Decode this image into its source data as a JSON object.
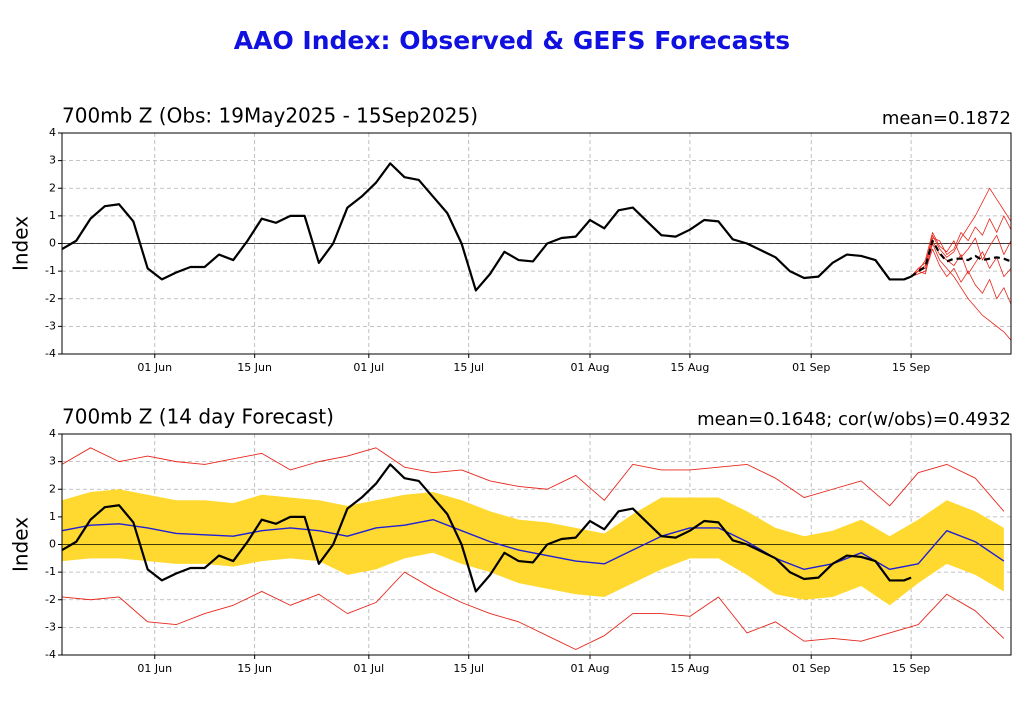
{
  "title": "AAO Index: Observed & GEFS Forecasts",
  "chart_data": [
    {
      "type": "line",
      "title": "700mb Z (Obs: 19May2025 - 15Sep2025)",
      "title_right": "mean=0.1872",
      "ylabel": "Index",
      "xlim": [
        0,
        133
      ],
      "ylim": [
        -4,
        4
      ],
      "yticks": [
        -4,
        -3,
        -2,
        -1,
        0,
        1,
        2,
        3,
        4
      ],
      "xticks": [
        {
          "value": 13,
          "label": "01 Jun"
        },
        {
          "value": 27,
          "label": "15 Jun"
        },
        {
          "value": 43,
          "label": "01 Jul"
        },
        {
          "value": 57,
          "label": "15 Jul"
        },
        {
          "value": 74,
          "label": "01 Aug"
        },
        {
          "value": 88,
          "label": "15 Aug"
        },
        {
          "value": 105,
          "label": "01 Sep"
        },
        {
          "value": 119,
          "label": "15 Sep"
        }
      ],
      "grid": true,
      "hline": 0,
      "bands": [],
      "series": [
        {
          "color": "#e8261c",
          "width": 0.8,
          "x": [
            119,
            120,
            121,
            122,
            123,
            124,
            125,
            126,
            127,
            128,
            129,
            130,
            131,
            132,
            133
          ],
          "values": [
            -1.2,
            -1.0,
            -0.8,
            0.3,
            -0.2,
            -0.5,
            -0.3,
            0.2,
            0.6,
            1.0,
            1.5,
            2.0,
            1.6,
            1.2,
            0.8
          ]
        },
        {
          "color": "#e8261c",
          "width": 0.8,
          "x": [
            119,
            120,
            121,
            122,
            123,
            124,
            125,
            126,
            127,
            128,
            129,
            130,
            131,
            132,
            133
          ],
          "values": [
            -1.2,
            -1.0,
            -1.1,
            0.0,
            -0.6,
            -0.9,
            -1.2,
            -1.6,
            -2.0,
            -2.3,
            -2.6,
            -2.8,
            -3.0,
            -3.2,
            -3.5
          ]
        },
        {
          "color": "#e8261c",
          "width": 0.8,
          "x": [
            119,
            120,
            121,
            122,
            123,
            124,
            125,
            126,
            127,
            128,
            129,
            130,
            131,
            132,
            133
          ],
          "values": [
            -1.2,
            -0.9,
            -0.7,
            0.2,
            0.1,
            -0.4,
            -0.2,
            0.4,
            0.1,
            0.6,
            0.3,
            0.9,
            0.4,
            1.0,
            0.5
          ]
        },
        {
          "color": "#e8261c",
          "width": 0.8,
          "x": [
            119,
            120,
            121,
            122,
            123,
            124,
            125,
            126,
            127,
            128,
            129,
            130,
            131,
            132,
            133
          ],
          "values": [
            -1.2,
            -1.1,
            -1.0,
            -0.2,
            -0.8,
            -1.2,
            -0.9,
            -1.4,
            -1.0,
            -1.5,
            -1.8,
            -1.3,
            -2.0,
            -1.6,
            -2.2
          ]
        },
        {
          "color": "#e8261c",
          "width": 0.8,
          "x": [
            119,
            120,
            121,
            122,
            123,
            124,
            125,
            126,
            127,
            128,
            129,
            130,
            131,
            132,
            133
          ],
          "values": [
            -1.2,
            -0.9,
            -0.9,
            0.1,
            -0.4,
            -0.6,
            -0.8,
            -0.4,
            -1.1,
            -0.7,
            -0.3,
            -0.9,
            -0.5,
            -1.2,
            -0.9
          ]
        },
        {
          "color": "#e8261c",
          "width": 0.8,
          "x": [
            119,
            120,
            121,
            122,
            123,
            124,
            125,
            126,
            127,
            128,
            129,
            130,
            131,
            132,
            133
          ],
          "values": [
            -1.2,
            -1.0,
            -0.6,
            0.4,
            -0.1,
            -0.3,
            0.1,
            -0.5,
            -0.2,
            0.2,
            -0.6,
            -0.1,
            0.3,
            -0.4,
            0.1
          ]
        },
        {
          "color": "#000000",
          "width": 2.2,
          "dash": true,
          "x": [
            119,
            120,
            121,
            122,
            123,
            124,
            125,
            126,
            127,
            128,
            129,
            130,
            131,
            132,
            133
          ],
          "values": [
            -1.2,
            -1.0,
            -0.85,
            0.1,
            -0.35,
            -0.65,
            -0.55,
            -0.55,
            -0.6,
            -0.45,
            -0.6,
            -0.55,
            -0.5,
            -0.55,
            -0.65
          ]
        },
        {
          "color": "#000000",
          "width": 2.2,
          "x": [
            0,
            2,
            4,
            6,
            8,
            10,
            12,
            14,
            16,
            18,
            20,
            22,
            24,
            26,
            28,
            30,
            32,
            34,
            36,
            38,
            40,
            42,
            44,
            46,
            48,
            50,
            52,
            54,
            56,
            58,
            60,
            62,
            64,
            66,
            68,
            70,
            72,
            74,
            76,
            78,
            80,
            82,
            84,
            86,
            88,
            90,
            92,
            94,
            96,
            98,
            100,
            102,
            104,
            106,
            108,
            110,
            112,
            114,
            116,
            118,
            119
          ],
          "values": [
            -0.2,
            0.1,
            0.9,
            1.35,
            1.42,
            0.8,
            -0.9,
            -1.3,
            -1.05,
            -0.85,
            -0.85,
            -0.4,
            -0.6,
            0.1,
            0.9,
            0.75,
            1.0,
            1.0,
            -0.7,
            0.0,
            1.3,
            1.7,
            2.2,
            2.9,
            2.4,
            2.3,
            1.7,
            1.1,
            0.0,
            -1.7,
            -1.1,
            -0.3,
            -0.6,
            -0.65,
            0.0,
            0.2,
            0.25,
            0.85,
            0.55,
            1.2,
            1.3,
            0.8,
            0.3,
            0.25,
            0.5,
            0.85,
            0.8,
            0.15,
            0.0,
            -0.25,
            -0.5,
            -1.0,
            -1.25,
            -1.2,
            -0.7,
            -0.4,
            -0.45,
            -0.6,
            -1.3,
            -1.3,
            -1.2
          ]
        }
      ]
    },
    {
      "type": "line",
      "title": "700mb Z (14 day Forecast)",
      "title_right": "mean=0.1648; cor(w/obs)=0.4932",
      "ylabel": "Index",
      "xlim": [
        0,
        133
      ],
      "ylim": [
        -4,
        4
      ],
      "yticks": [
        -4,
        -3,
        -2,
        -1,
        0,
        1,
        2,
        3,
        4
      ],
      "xticks": [
        {
          "value": 13,
          "label": "01 Jun"
        },
        {
          "value": 27,
          "label": "15 Jun"
        },
        {
          "value": 43,
          "label": "01 Jul"
        },
        {
          "value": 57,
          "label": "15 Jul"
        },
        {
          "value": 74,
          "label": "01 Aug"
        },
        {
          "value": 88,
          "label": "15 Aug"
        },
        {
          "value": 105,
          "label": "01 Sep"
        },
        {
          "value": 119,
          "label": "15 Sep"
        }
      ],
      "grid": true,
      "hline": 0,
      "bands": [
        {
          "color": "#ffd92f",
          "x": [
            0,
            4,
            8,
            12,
            16,
            20,
            24,
            28,
            32,
            36,
            40,
            44,
            48,
            52,
            56,
            60,
            64,
            68,
            72,
            76,
            80,
            84,
            88,
            92,
            96,
            100,
            104,
            108,
            112,
            116,
            120,
            124,
            128,
            132
          ],
          "high": [
            1.6,
            1.9,
            2.0,
            1.8,
            1.6,
            1.6,
            1.5,
            1.8,
            1.7,
            1.6,
            1.4,
            1.6,
            1.8,
            1.9,
            1.6,
            1.2,
            0.9,
            0.8,
            0.6,
            0.4,
            1.1,
            1.7,
            1.7,
            1.7,
            1.2,
            0.6,
            0.3,
            0.5,
            0.9,
            0.3,
            0.9,
            1.6,
            1.2,
            0.6
          ],
          "low": [
            -0.6,
            -0.5,
            -0.5,
            -0.6,
            -0.7,
            -0.7,
            -0.8,
            -0.6,
            -0.5,
            -0.6,
            -1.1,
            -0.9,
            -0.5,
            -0.3,
            -0.7,
            -1.0,
            -1.4,
            -1.6,
            -1.8,
            -1.9,
            -1.4,
            -0.9,
            -0.5,
            -0.5,
            -1.1,
            -1.8,
            -2.0,
            -1.9,
            -1.5,
            -2.2,
            -1.4,
            -0.7,
            -1.1,
            -1.7
          ]
        }
      ],
      "series": [
        {
          "color": "#e8261c",
          "width": 0.9,
          "x": [
            0,
            4,
            8,
            12,
            16,
            20,
            24,
            28,
            32,
            36,
            40,
            44,
            48,
            52,
            56,
            60,
            64,
            68,
            72,
            76,
            80,
            84,
            88,
            92,
            96,
            100,
            104,
            108,
            112,
            116,
            120,
            124,
            128,
            132
          ],
          "values": [
            2.9,
            3.5,
            3.0,
            3.2,
            3.0,
            2.9,
            3.1,
            3.3,
            2.7,
            3.0,
            3.2,
            3.5,
            2.8,
            2.6,
            2.7,
            2.3,
            2.1,
            2.0,
            2.5,
            1.6,
            2.9,
            2.7,
            2.7,
            2.8,
            2.9,
            2.4,
            1.7,
            2.0,
            2.3,
            1.4,
            2.6,
            2.9,
            2.4,
            1.2
          ]
        },
        {
          "color": "#e8261c",
          "width": 0.9,
          "x": [
            0,
            4,
            8,
            12,
            16,
            20,
            24,
            28,
            32,
            36,
            40,
            44,
            48,
            52,
            56,
            60,
            64,
            68,
            72,
            76,
            80,
            84,
            88,
            92,
            96,
            100,
            104,
            108,
            112,
            116,
            120,
            124,
            128,
            132
          ],
          "values": [
            -1.9,
            -2.0,
            -1.9,
            -2.8,
            -2.9,
            -2.5,
            -2.2,
            -1.7,
            -2.2,
            -1.8,
            -2.5,
            -2.1,
            -1.0,
            -1.6,
            -2.1,
            -2.5,
            -2.8,
            -3.3,
            -3.8,
            -3.3,
            -2.5,
            -2.5,
            -2.6,
            -1.9,
            -3.2,
            -2.8,
            -3.5,
            -3.4,
            -3.5,
            -3.2,
            -2.9,
            -1.8,
            -2.4,
            -3.4
          ]
        },
        {
          "color": "#1f1fd6",
          "width": 1.4,
          "x": [
            0,
            4,
            8,
            12,
            16,
            20,
            24,
            28,
            32,
            36,
            40,
            44,
            48,
            52,
            56,
            60,
            64,
            68,
            72,
            76,
            80,
            84,
            88,
            92,
            96,
            100,
            104,
            108,
            112,
            116,
            120,
            124,
            128,
            132
          ],
          "values": [
            0.5,
            0.7,
            0.75,
            0.6,
            0.4,
            0.35,
            0.3,
            0.5,
            0.6,
            0.5,
            0.3,
            0.6,
            0.7,
            0.9,
            0.5,
            0.1,
            -0.2,
            -0.4,
            -0.6,
            -0.7,
            -0.2,
            0.3,
            0.6,
            0.6,
            0.1,
            -0.5,
            -0.9,
            -0.7,
            -0.3,
            -0.9,
            -0.7,
            0.5,
            0.1,
            -0.6
          ]
        },
        {
          "color": "#000000",
          "width": 2.2,
          "x": [
            0,
            2,
            4,
            6,
            8,
            10,
            12,
            14,
            16,
            18,
            20,
            22,
            24,
            26,
            28,
            30,
            32,
            34,
            36,
            38,
            40,
            42,
            44,
            46,
            48,
            50,
            52,
            54,
            56,
            58,
            60,
            62,
            64,
            66,
            68,
            70,
            72,
            74,
            76,
            78,
            80,
            82,
            84,
            86,
            88,
            90,
            92,
            94,
            96,
            98,
            100,
            102,
            104,
            106,
            108,
            110,
            112,
            114,
            116,
            118,
            119
          ],
          "values": [
            -0.2,
            0.1,
            0.9,
            1.35,
            1.42,
            0.8,
            -0.9,
            -1.3,
            -1.05,
            -0.85,
            -0.85,
            -0.4,
            -0.6,
            0.1,
            0.9,
            0.75,
            1.0,
            1.0,
            -0.7,
            0.0,
            1.3,
            1.7,
            2.2,
            2.9,
            2.4,
            2.3,
            1.7,
            1.1,
            0.0,
            -1.7,
            -1.1,
            -0.3,
            -0.6,
            -0.65,
            0.0,
            0.2,
            0.25,
            0.85,
            0.55,
            1.2,
            1.3,
            0.8,
            0.3,
            0.25,
            0.5,
            0.85,
            0.8,
            0.15,
            0.0,
            -0.25,
            -0.5,
            -1.0,
            -1.25,
            -1.2,
            -0.7,
            -0.4,
            -0.45,
            -0.6,
            -1.3,
            -1.3,
            -1.2
          ]
        }
      ]
    }
  ]
}
